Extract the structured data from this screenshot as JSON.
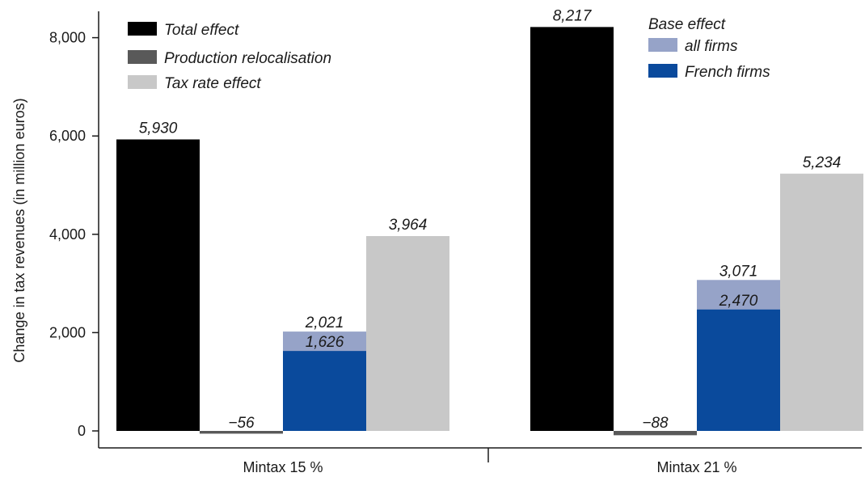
{
  "chart_data": {
    "type": "bar",
    "ylabel": "Change in tax revenues (in million euros)",
    "ylim": [
      -300,
      8400
    ],
    "yticks": [
      0,
      2000,
      4000,
      6000,
      8000
    ],
    "ytick_labels": [
      "0",
      "2,000",
      "4,000",
      "6,000",
      "8,000"
    ],
    "groups": [
      {
        "label": "Mintax 15 %",
        "total_effect": 5930,
        "total_effect_label": "5,930",
        "production_relocalisation": -56,
        "production_relocalisation_label": "−56",
        "base_effect_all_firms": 2021,
        "base_effect_all_firms_label": "2,021",
        "base_effect_french_firms": 1626,
        "base_effect_french_firms_label": "1,626",
        "tax_rate_effect": 3964,
        "tax_rate_effect_label": "3,964"
      },
      {
        "label": "Mintax 21 %",
        "total_effect": 8217,
        "total_effect_label": "8,217",
        "production_relocalisation": -88,
        "production_relocalisation_label": "−88",
        "base_effect_all_firms": 3071,
        "base_effect_all_firms_label": "3,071",
        "base_effect_french_firms": 2470,
        "base_effect_french_firms_label": "2,470",
        "tax_rate_effect": 5234,
        "tax_rate_effect_label": "5,234"
      }
    ],
    "legend": {
      "left": [
        {
          "key": "total_effect",
          "label": "Total effect",
          "color": "#000000"
        },
        {
          "key": "production_relocalisation",
          "label": "Production relocalisation",
          "color": "#595959"
        },
        {
          "key": "tax_rate_effect",
          "label": "Tax rate effect",
          "color": "#c8c8c8"
        }
      ],
      "right_title": "Base effect",
      "right": [
        {
          "key": "base_effect_all_firms",
          "label": "all firms",
          "color": "#96a3c8"
        },
        {
          "key": "base_effect_french_firms",
          "label": "French firms",
          "color": "#0a4a9c"
        }
      ]
    },
    "grid": false
  }
}
